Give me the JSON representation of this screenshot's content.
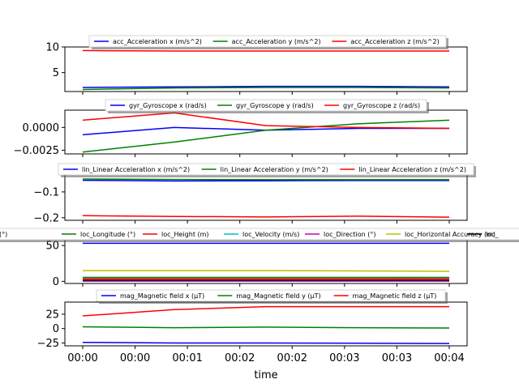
{
  "chart_data": {
    "type": "line",
    "xlabel": "time",
    "x_tick_labels": [
      "00:00",
      "00:00",
      "00:01",
      "00:02",
      "00:02",
      "00:03",
      "00:03",
      "00:04"
    ],
    "x_range": [
      0,
      4
    ],
    "x": [
      0,
      1,
      2,
      3,
      4
    ],
    "panels": [
      {
        "id": "acc",
        "ylim": [
          1.3,
          10.0
        ],
        "yticks": [
          5,
          10
        ],
        "yticklabels": [
          "5",
          "10"
        ],
        "series": [
          {
            "name": "acc_Acceleration x (m/s^2)",
            "color": "#0000ff",
            "values": [
              2.1,
              2.2,
              2.3,
              2.3,
              2.2
            ]
          },
          {
            "name": "acc_Acceleration y (m/s^2)",
            "color": "#008000",
            "values": [
              1.7,
              2.0,
              2.1,
              2.1,
              2.0
            ]
          },
          {
            "name": "acc_Acceleration z (m/s^2)",
            "color": "#ff0000",
            "values": [
              9.3,
              9.2,
              9.2,
              9.2,
              9.2
            ]
          }
        ]
      },
      {
        "id": "gyr",
        "ylim": [
          -0.0029,
          0.0019
        ],
        "yticks": [
          0.0,
          -0.0025
        ],
        "yticklabels": [
          "0.0000",
          "−0.0025"
        ],
        "series": [
          {
            "name": "gyr_Gyroscope x (rad/s)",
            "color": "#0000ff",
            "values": [
              -0.0008,
              0.0,
              -0.0003,
              -0.0001,
              -0.0001
            ]
          },
          {
            "name": "gyr_Gyroscope y (rad/s)",
            "color": "#008000",
            "values": [
              -0.0027,
              -0.0016,
              -0.0003,
              0.0004,
              0.0008
            ]
          },
          {
            "name": "gyr_Gyroscope z (rad/s)",
            "color": "#ff0000",
            "values": [
              0.0008,
              0.0016,
              0.0002,
              0.0,
              -0.0001
            ]
          }
        ]
      },
      {
        "id": "lin",
        "ylim": [
          -0.21,
          -0.025
        ],
        "yticks": [
          -0.1,
          -0.2
        ],
        "yticklabels": [
          "−0.1",
          "−0.2"
        ],
        "series": [
          {
            "name": "lin_Linear Acceleration x (m/s^2)",
            "color": "#0000ff",
            "values": [
              -0.055,
              -0.058,
              -0.057,
              -0.056,
              -0.056
            ]
          },
          {
            "name": "lin_Linear Acceleration y (m/s^2)",
            "color": "#008000",
            "values": [
              -0.05,
              -0.052,
              -0.053,
              -0.053,
              -0.053
            ]
          },
          {
            "name": "lin_Linear Acceleration z (m/s^2)",
            "color": "#ff0000",
            "values": [
              -0.192,
              -0.195,
              -0.197,
              -0.194,
              -0.198
            ]
          }
        ]
      },
      {
        "id": "loc",
        "ylim": [
          -3,
          58
        ],
        "yticks": [
          0,
          50
        ],
        "yticklabels": [
          "0",
          "50"
        ],
        "series": [
          {
            "name": "(°)",
            "color": "#0000ff",
            "values": [
              53,
              53,
              53,
              53,
              53
            ]
          },
          {
            "name": "loc_Longitude (°)",
            "color": "#008000",
            "values": [
              5.5,
              5.5,
              5.5,
              5.5,
              5.5
            ]
          },
          {
            "name": "loc_Height (m)",
            "color": "#ff0000",
            "values": [
              3.5,
              3.5,
              3.5,
              3.5,
              3.5
            ]
          },
          {
            "name": "loc_Velocity (m/s)",
            "color": "#00bfbf",
            "values": [
              0.5,
              0.5,
              0.5,
              0.5,
              0.5
            ]
          },
          {
            "name": "loc_Direction (°)",
            "color": "#bf00bf",
            "values": [
              0.2,
              0.2,
              0.2,
              0.2,
              0.2
            ]
          },
          {
            "name": "loc_Horizontal Accuracy (m)",
            "color": "#bfbf00",
            "values": [
              15,
              15,
              15,
              14.5,
              14
            ]
          },
          {
            "name": "loc_",
            "color": "#000000",
            "values": [
              1.5,
              1.5,
              1.5,
              1.5,
              1.5
            ]
          }
        ]
      },
      {
        "id": "mag",
        "ylim": [
          -30,
          46
        ],
        "yticks": [
          25,
          0,
          -25
        ],
        "yticklabels": [
          "25",
          "0",
          "−25"
        ],
        "series": [
          {
            "name": "mag_Magnetic field x (µT)",
            "color": "#0000ff",
            "values": [
              -24,
              -25,
              -25,
              -25.5,
              -26
            ]
          },
          {
            "name": "mag_Magnetic field y (µT)",
            "color": "#008000",
            "values": [
              3,
              1.5,
              2.5,
              1.5,
              1
            ]
          },
          {
            "name": "mag_Magnetic field z (µT)",
            "color": "#ff0000",
            "values": [
              22,
              33,
              38,
              38,
              38
            ]
          }
        ]
      }
    ]
  }
}
